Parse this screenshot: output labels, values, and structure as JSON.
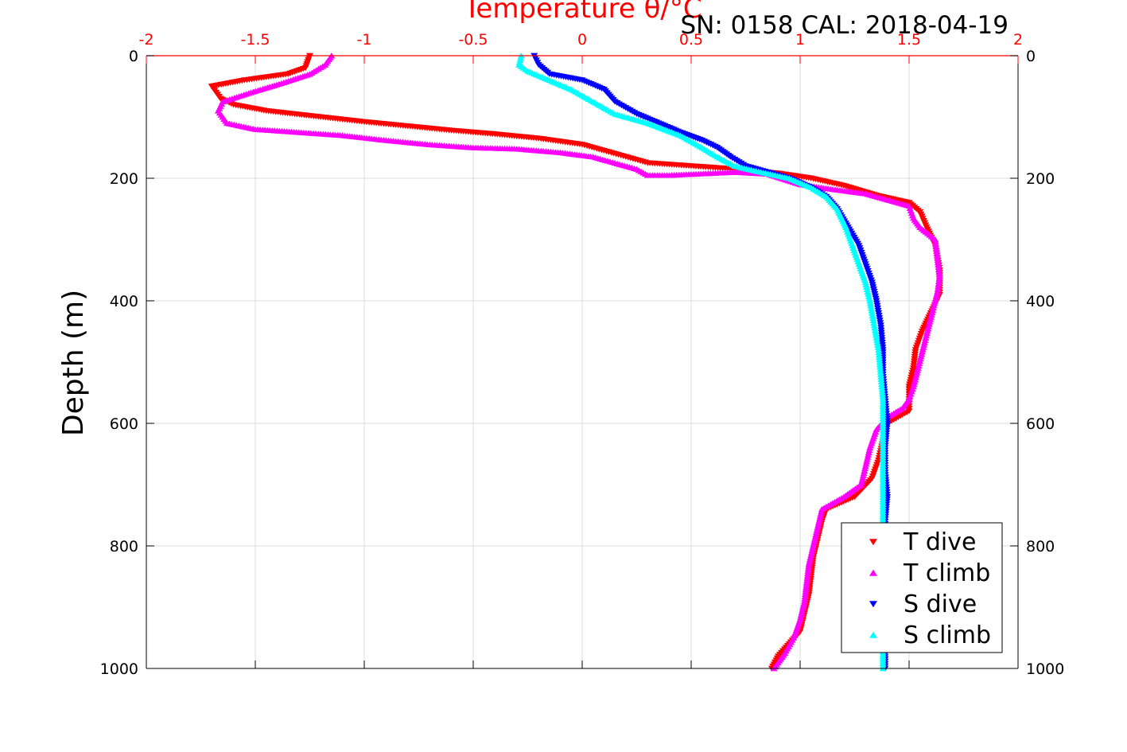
{
  "chart_data": {
    "type": "scatter",
    "title": "SN: 0158  CAL: 2018-04-19",
    "xlabel": "Temperature θ/°C",
    "ylabel": "Depth (m)",
    "xlim": [
      -2,
      2
    ],
    "ylim": [
      1000,
      0
    ],
    "y_reversed": true,
    "x_axis_position": "top",
    "x_ticks": [
      "-2",
      "-1.5",
      "-1",
      "-0.5",
      "0",
      "0.5",
      "1",
      "1.5",
      "2"
    ],
    "y_ticks": [
      "0",
      "200",
      "400",
      "600",
      "800",
      "1000"
    ],
    "y_tick_values": [
      0,
      200,
      400,
      600,
      800,
      1000
    ],
    "x_tick_values": [
      -2,
      -1.5,
      -1,
      -0.5,
      0,
      0.5,
      1,
      1.5,
      2
    ],
    "grid": true,
    "legend_position": "bottom-right",
    "axis_color": "#ff0000",
    "series": [
      {
        "name": "T dive",
        "marker": "triangle-down",
        "color": "#ff0000",
        "points": [
          [
            -1.25,
            0
          ],
          [
            -1.26,
            10
          ],
          [
            -1.27,
            20
          ],
          [
            -1.35,
            30
          ],
          [
            -1.55,
            40
          ],
          [
            -1.7,
            50
          ],
          [
            -1.68,
            60
          ],
          [
            -1.66,
            70
          ],
          [
            -1.6,
            80
          ],
          [
            -1.45,
            90
          ],
          [
            -1.2,
            100
          ],
          [
            -1.0,
            108
          ],
          [
            -0.8,
            115
          ],
          [
            -0.6,
            122
          ],
          [
            -0.4,
            128
          ],
          [
            -0.2,
            135
          ],
          [
            0.0,
            145
          ],
          [
            0.1,
            155
          ],
          [
            0.2,
            165
          ],
          [
            0.3,
            175
          ],
          [
            0.5,
            180
          ],
          [
            0.7,
            185
          ],
          [
            0.9,
            192
          ],
          [
            1.05,
            200
          ],
          [
            1.2,
            212
          ],
          [
            1.35,
            228
          ],
          [
            1.5,
            240
          ],
          [
            1.55,
            255
          ],
          [
            1.58,
            280
          ],
          [
            1.62,
            310
          ],
          [
            1.64,
            350
          ],
          [
            1.64,
            390
          ],
          [
            1.6,
            420
          ],
          [
            1.56,
            450
          ],
          [
            1.53,
            480
          ],
          [
            1.52,
            510
          ],
          [
            1.5,
            540
          ],
          [
            1.5,
            580
          ],
          [
            1.4,
            600
          ],
          [
            1.38,
            630
          ],
          [
            1.36,
            660
          ],
          [
            1.33,
            690
          ],
          [
            1.25,
            720
          ],
          [
            1.12,
            740
          ],
          [
            1.1,
            760
          ],
          [
            1.08,
            790
          ],
          [
            1.06,
            820
          ],
          [
            1.05,
            850
          ],
          [
            1.04,
            880
          ],
          [
            1.02,
            910
          ],
          [
            1.0,
            940
          ],
          [
            0.95,
            960
          ],
          [
            0.9,
            980
          ],
          [
            0.87,
            1000
          ]
        ]
      },
      {
        "name": "T climb",
        "marker": "triangle-up",
        "color": "#ff00ff",
        "points": [
          [
            -1.15,
            0
          ],
          [
            -1.18,
            15
          ],
          [
            -1.25,
            30
          ],
          [
            -1.38,
            45
          ],
          [
            -1.52,
            60
          ],
          [
            -1.65,
            75
          ],
          [
            -1.67,
            90
          ],
          [
            -1.63,
            110
          ],
          [
            -1.5,
            120
          ],
          [
            -1.3,
            125
          ],
          [
            -1.1,
            130
          ],
          [
            -0.9,
            138
          ],
          [
            -0.7,
            145
          ],
          [
            -0.5,
            150
          ],
          [
            -0.3,
            152
          ],
          [
            -0.1,
            158
          ],
          [
            0.05,
            165
          ],
          [
            0.15,
            175
          ],
          [
            0.25,
            185
          ],
          [
            0.3,
            195
          ],
          [
            0.4,
            195
          ],
          [
            0.7,
            190
          ],
          [
            0.85,
            193
          ],
          [
            1.0,
            210
          ],
          [
            1.15,
            218
          ],
          [
            1.3,
            225
          ],
          [
            1.4,
            235
          ],
          [
            1.5,
            245
          ],
          [
            1.52,
            265
          ],
          [
            1.55,
            280
          ],
          [
            1.62,
            300
          ],
          [
            1.63,
            330
          ],
          [
            1.64,
            360
          ],
          [
            1.63,
            385
          ],
          [
            1.52,
            540
          ],
          [
            1.5,
            560
          ],
          [
            1.47,
            575
          ],
          [
            1.4,
            590
          ],
          [
            1.35,
            610
          ],
          [
            1.32,
            640
          ],
          [
            1.3,
            670
          ],
          [
            1.28,
            700
          ],
          [
            1.2,
            720
          ],
          [
            1.1,
            740
          ],
          [
            1.08,
            770
          ],
          [
            1.06,
            800
          ],
          [
            1.04,
            830
          ],
          [
            1.03,
            860
          ],
          [
            1.02,
            890
          ],
          [
            1.0,
            920
          ],
          [
            0.97,
            950
          ],
          [
            0.93,
            975
          ],
          [
            0.88,
            1000
          ]
        ]
      },
      {
        "name": "S dive",
        "marker": "triangle-down",
        "color": "#0000ff",
        "points": [
          [
            -0.22,
            0
          ],
          [
            -0.2,
            15
          ],
          [
            -0.15,
            30
          ],
          [
            0.0,
            40
          ],
          [
            0.1,
            55
          ],
          [
            0.15,
            75
          ],
          [
            0.25,
            95
          ],
          [
            0.35,
            110
          ],
          [
            0.45,
            125
          ],
          [
            0.55,
            138
          ],
          [
            0.62,
            150
          ],
          [
            0.68,
            165
          ],
          [
            0.75,
            180
          ],
          [
            0.85,
            190
          ],
          [
            0.95,
            200
          ],
          [
            1.05,
            215
          ],
          [
            1.12,
            230
          ],
          [
            1.17,
            250
          ],
          [
            1.22,
            280
          ],
          [
            1.27,
            310
          ],
          [
            1.3,
            340
          ],
          [
            1.33,
            370
          ],
          [
            1.35,
            400
          ],
          [
            1.37,
            440
          ],
          [
            1.38,
            480
          ],
          [
            1.38,
            520
          ],
          [
            1.39,
            560
          ],
          [
            1.4,
            600
          ],
          [
            1.39,
            640
          ],
          [
            1.39,
            680
          ],
          [
            1.4,
            720
          ],
          [
            1.39,
            760
          ],
          [
            1.39,
            800
          ],
          [
            1.39,
            850
          ],
          [
            1.39,
            900
          ],
          [
            1.39,
            950
          ],
          [
            1.39,
            1000
          ]
        ]
      },
      {
        "name": "S climb",
        "marker": "triangle-up",
        "color": "#00ffff",
        "points": [
          [
            -0.28,
            0
          ],
          [
            -0.29,
            15
          ],
          [
            -0.25,
            25
          ],
          [
            -0.15,
            40
          ],
          [
            -0.05,
            55
          ],
          [
            0.05,
            75
          ],
          [
            0.15,
            95
          ],
          [
            0.3,
            110
          ],
          [
            0.45,
            130
          ],
          [
            0.55,
            150
          ],
          [
            0.62,
            165
          ],
          [
            0.7,
            180
          ],
          [
            0.82,
            190
          ],
          [
            0.95,
            200
          ],
          [
            1.05,
            215
          ],
          [
            1.12,
            230
          ],
          [
            1.17,
            250
          ],
          [
            1.21,
            280
          ],
          [
            1.24,
            310
          ],
          [
            1.27,
            340
          ],
          [
            1.3,
            370
          ],
          [
            1.32,
            400
          ],
          [
            1.34,
            440
          ],
          [
            1.36,
            480
          ],
          [
            1.37,
            520
          ],
          [
            1.38,
            560
          ],
          [
            1.38,
            600
          ],
          [
            1.38,
            640
          ],
          [
            1.38,
            680
          ],
          [
            1.38,
            720
          ],
          [
            1.38,
            760
          ],
          [
            1.38,
            800
          ],
          [
            1.38,
            850
          ],
          [
            1.38,
            900
          ],
          [
            1.38,
            950
          ],
          [
            1.38,
            1000
          ]
        ]
      }
    ]
  }
}
